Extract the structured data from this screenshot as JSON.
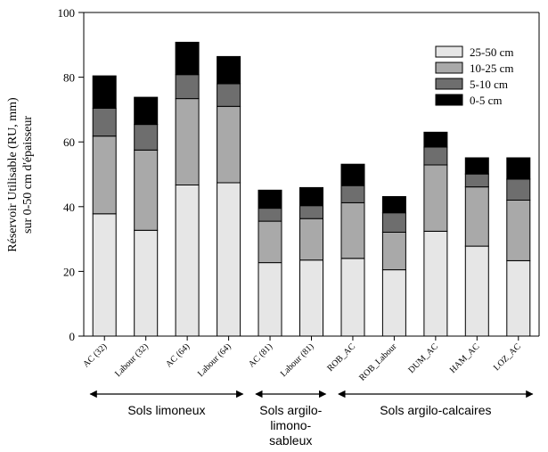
{
  "chart_data": {
    "type": "bar",
    "stacked": true,
    "title": "",
    "ylabel_lines": [
      "Réservoir Utilisable (RU, mm)",
      "sur 0-50 cm d'épaisseur"
    ],
    "xlabel": "",
    "ylim": [
      0,
      100
    ],
    "yticks": [
      0,
      20,
      40,
      60,
      80,
      100
    ],
    "grid": false,
    "legend_position": "top-right",
    "categories": [
      "AC (32)",
      "Labour (32)",
      "AC (64)",
      "Labour (64)",
      "AC (81)",
      "Labour (81)",
      "ROB_AC",
      "ROB_Labour",
      "DUM_AC",
      "HAM_AC",
      "LOZ_AC"
    ],
    "series": [
      {
        "name": "25-50 cm",
        "color": "#e6e6e6",
        "values": [
          37.8,
          32.7,
          46.7,
          47.4,
          22.7,
          23.5,
          24.0,
          20.5,
          32.4,
          27.8,
          23.3
        ]
      },
      {
        "name": "10-25 cm",
        "color": "#a9a9a9",
        "values": [
          24.0,
          24.8,
          26.7,
          23.6,
          12.8,
          12.8,
          17.2,
          11.6,
          20.5,
          18.3,
          18.7
        ]
      },
      {
        "name": "5-10 cm",
        "color": "#6e6e6e",
        "values": [
          8.6,
          7.9,
          7.4,
          7.0,
          4.0,
          4.0,
          5.3,
          6.0,
          5.5,
          4.0,
          6.5
        ]
      },
      {
        "name": "0-5 cm",
        "color": "#000000",
        "values": [
          10.0,
          8.4,
          10.0,
          8.4,
          5.6,
          5.6,
          6.6,
          5.0,
          4.6,
          5.0,
          6.6
        ]
      }
    ],
    "groups": [
      {
        "label_lines": [
          "Sols limoneux"
        ],
        "from": 0,
        "to": 3
      },
      {
        "label_lines": [
          "Sols argilo-",
          "limono-",
          "sableux"
        ],
        "from": 4,
        "to": 5
      },
      {
        "label_lines": [
          "Sols argilo-calcaires"
        ],
        "from": 6,
        "to": 10
      }
    ]
  }
}
